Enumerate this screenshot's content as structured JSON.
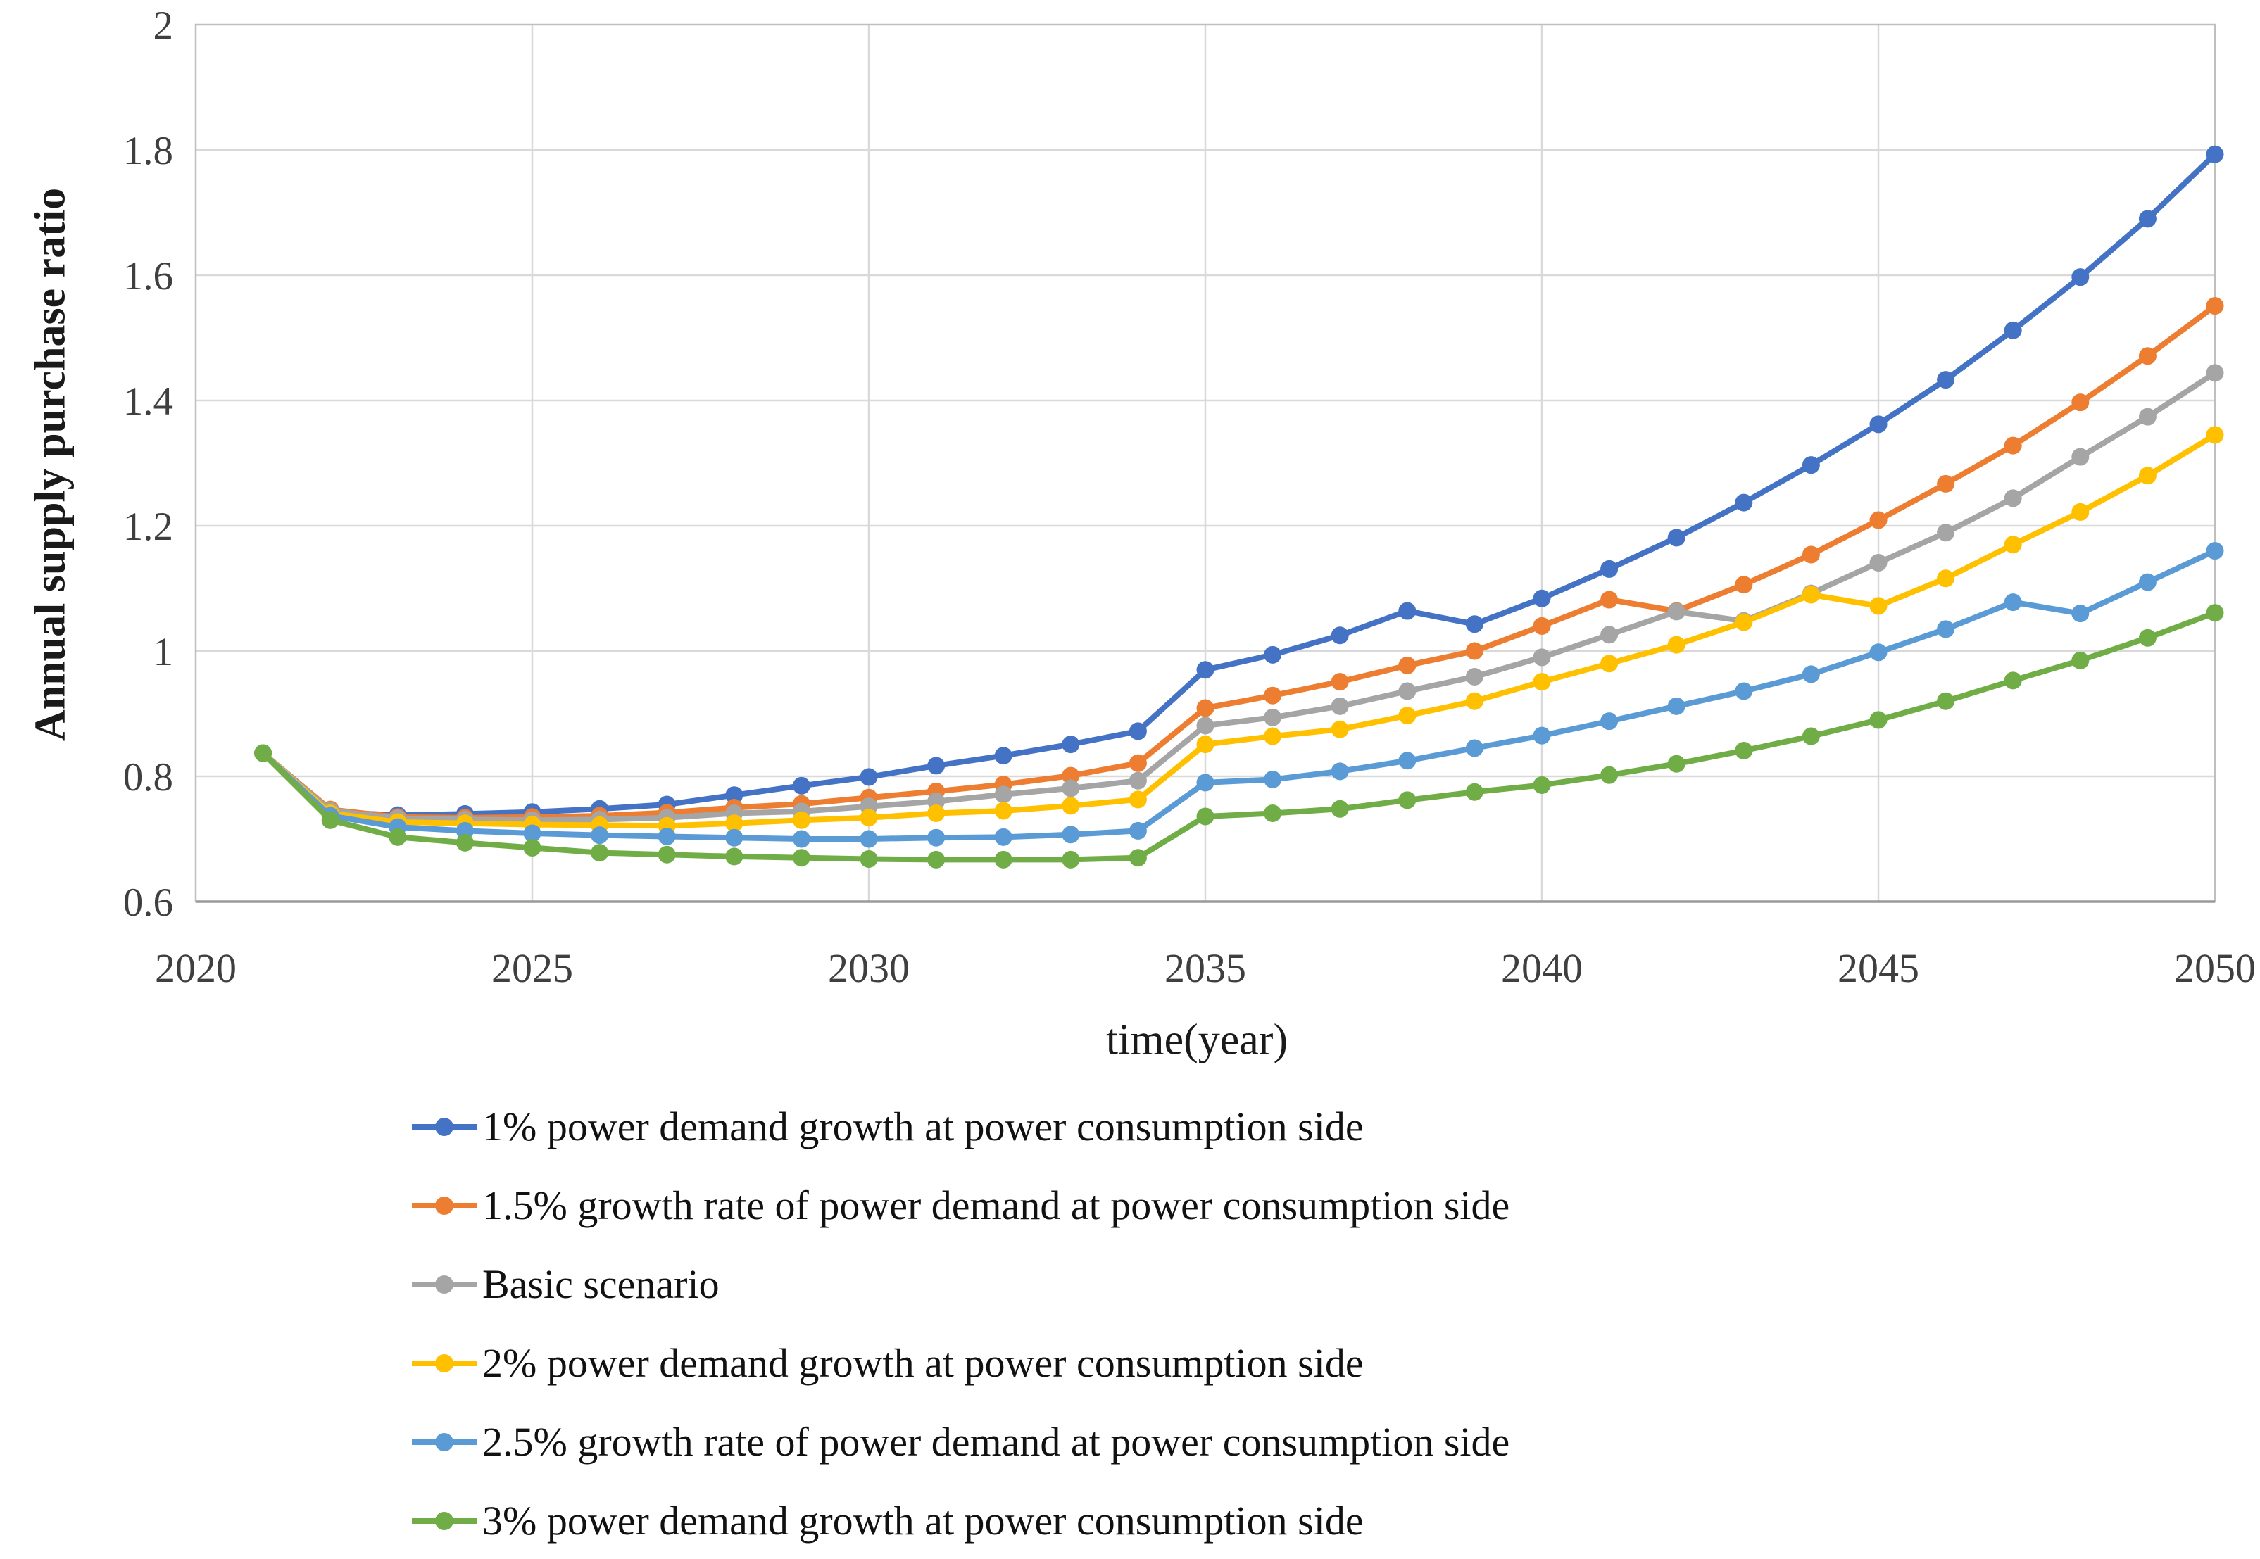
{
  "chart_data": {
    "type": "line",
    "title": "",
    "xlabel": "time(year)",
    "ylabel": "Annual supply purchase ratio",
    "xlim": [
      2020,
      2050
    ],
    "ylim": [
      0.6,
      2.0
    ],
    "grid": true,
    "legend_position": "bottom-left",
    "x_ticks": [
      "2020",
      "2025",
      "2030",
      "2035",
      "2040",
      "2045",
      "2050"
    ],
    "x_tick_values": [
      2020,
      2025,
      2030,
      2035,
      2040,
      2045,
      2050
    ],
    "y_ticks": [
      "0.6",
      "0.8",
      "1",
      "1.2",
      "1.4",
      "1.6",
      "1.8",
      "2"
    ],
    "y_tick_values": [
      0.6,
      0.8,
      1.0,
      1.2,
      1.4,
      1.6,
      1.8,
      2.0
    ],
    "x": [
      2021,
      2022,
      2023,
      2024,
      2025,
      2026,
      2027,
      2028,
      2029,
      2030,
      2031,
      2032,
      2033,
      2034,
      2035,
      2036,
      2037,
      2038,
      2039,
      2040,
      2041,
      2042,
      2043,
      2044,
      2045,
      2046,
      2047,
      2048,
      2049,
      2050
    ],
    "series": [
      {
        "name": "1% power demand growth at power consumption side",
        "color": "#4472C4",
        "values": [
          0.837,
          0.743,
          0.738,
          0.74,
          0.743,
          0.748,
          0.755,
          0.77,
          0.785,
          0.799,
          0.817,
          0.833,
          0.851,
          0.872,
          0.97,
          0.994,
          1.025,
          1.064,
          1.043,
          1.084,
          1.131,
          1.181,
          1.237,
          1.297,
          1.362,
          1.433,
          1.512,
          1.597,
          1.69,
          1.793
        ]
      },
      {
        "name": "1.5% growth rate of power demand at power consumption side",
        "color": "#ED7D31",
        "values": [
          0.837,
          0.747,
          0.735,
          0.734,
          0.735,
          0.737,
          0.742,
          0.75,
          0.756,
          0.766,
          0.776,
          0.787,
          0.801,
          0.821,
          0.909,
          0.929,
          0.951,
          0.977,
          1.0,
          1.04,
          1.082,
          1.064,
          1.106,
          1.154,
          1.209,
          1.267,
          1.328,
          1.397,
          1.471,
          1.551
        ]
      },
      {
        "name": "Basic scenario",
        "color": "#A5A5A5",
        "values": [
          0.837,
          0.745,
          0.733,
          0.731,
          0.73,
          0.731,
          0.734,
          0.741,
          0.744,
          0.752,
          0.76,
          0.771,
          0.781,
          0.793,
          0.881,
          0.894,
          0.912,
          0.936,
          0.959,
          0.99,
          1.026,
          1.063,
          1.048,
          1.092,
          1.141,
          1.189,
          1.244,
          1.31,
          1.374,
          1.444
        ]
      },
      {
        "name": "2% power demand growth at power consumption side",
        "color": "#FFC000",
        "values": [
          0.837,
          0.741,
          0.727,
          0.725,
          0.723,
          0.722,
          0.721,
          0.725,
          0.73,
          0.734,
          0.741,
          0.745,
          0.753,
          0.763,
          0.851,
          0.864,
          0.875,
          0.897,
          0.92,
          0.951,
          0.98,
          1.01,
          1.046,
          1.09,
          1.072,
          1.116,
          1.17,
          1.222,
          1.28,
          1.345
        ]
      },
      {
        "name": "2.5% growth rate of power demand at power consumption side",
        "color": "#5B9BD5",
        "values": [
          0.837,
          0.737,
          0.719,
          0.713,
          0.709,
          0.706,
          0.704,
          0.702,
          0.7,
          0.7,
          0.702,
          0.703,
          0.707,
          0.713,
          0.79,
          0.795,
          0.808,
          0.825,
          0.845,
          0.865,
          0.888,
          0.912,
          0.936,
          0.963,
          0.998,
          1.035,
          1.078,
          1.06,
          1.11,
          1.16
        ]
      },
      {
        "name": "3% power demand growth at power consumption side",
        "color": "#70AD47",
        "values": [
          0.837,
          0.73,
          0.703,
          0.694,
          0.686,
          0.678,
          0.675,
          0.672,
          0.67,
          0.668,
          0.667,
          0.667,
          0.667,
          0.67,
          0.736,
          0.741,
          0.748,
          0.762,
          0.775,
          0.786,
          0.802,
          0.82,
          0.841,
          0.864,
          0.89,
          0.92,
          0.953,
          0.985,
          1.021,
          1.061
        ]
      }
    ],
    "style": {
      "gridline_color": "#D9D9D9",
      "border_color": "#BFBFBF",
      "axis_line_color": "#9A9A9A",
      "tick_label_color": "#3F3F3F"
    }
  }
}
